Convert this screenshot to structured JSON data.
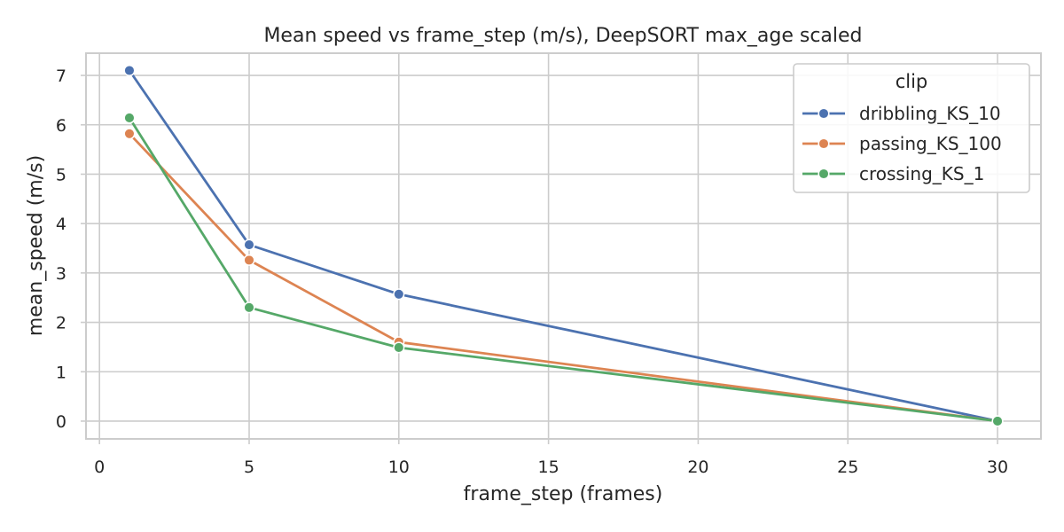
{
  "chart_data": {
    "type": "line",
    "title": "Mean speed vs frame_step (m/s), DeepSORT max_age scaled",
    "xlabel": "frame_step (frames)",
    "ylabel": "mean_speed (m/s)",
    "xlim": [
      -0.45,
      31.45
    ],
    "ylim": [
      -0.36,
      7.45
    ],
    "xticks": [
      0,
      5,
      10,
      15,
      20,
      25,
      30
    ],
    "yticks": [
      0,
      1,
      2,
      3,
      4,
      5,
      6,
      7
    ],
    "grid": true,
    "legend": {
      "title": "clip",
      "position": "top-right"
    },
    "x": [
      1,
      5,
      10,
      30
    ],
    "series": [
      {
        "name": "dribbling_KS_10",
        "color": "#4c72b0",
        "values": [
          7.1,
          3.57,
          2.57,
          0.0
        ]
      },
      {
        "name": "passing_KS_100",
        "color": "#dd8452",
        "values": [
          5.82,
          3.26,
          1.6,
          0.0
        ]
      },
      {
        "name": "crossing_KS_1",
        "color": "#55a868",
        "values": [
          6.14,
          2.3,
          1.49,
          0.0
        ]
      }
    ]
  }
}
